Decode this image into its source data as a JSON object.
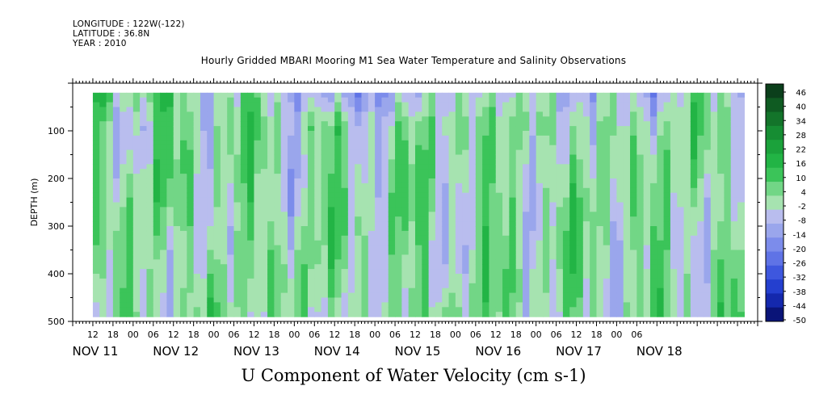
{
  "header": {
    "longitude": "LONGITUDE : 122W(-122)",
    "latitude": "LATITUDE : 36.8N",
    "year": "YEAR : 2010"
  },
  "chart_data": {
    "type": "heatmap",
    "title": "Hourly Gridded MBARI Mooring M1 Sea Water Temperature and Salinity Observations",
    "subtitle": "U Component of Water Velocity (cm s-1)",
    "xlabel": "",
    "ylabel": "DEPTH (m)",
    "x_hour_ticks": [
      "12",
      "18",
      "00",
      "06",
      "12",
      "18",
      "00",
      "06",
      "12",
      "18",
      "00",
      "06",
      "12",
      "18",
      "00",
      "06",
      "12",
      "18",
      "00",
      "06",
      "12",
      "18",
      "00",
      "06",
      "12",
      "18",
      "00",
      "06"
    ],
    "x_day_labels": [
      "NOV 11",
      "NOV 12",
      "NOV 13",
      "NOV 14",
      "NOV 15",
      "NOV 16",
      "NOV 17",
      "NOV 18"
    ],
    "x_range_hours": [
      0,
      204
    ],
    "data_x_range_hours": [
      6,
      200
    ],
    "y_ticks": [
      100,
      200,
      300,
      400,
      500
    ],
    "ylim": [
      500,
      0
    ],
    "data_depth_range": [
      20,
      490
    ],
    "colorbar": {
      "levels": [
        46,
        40,
        34,
        28,
        22,
        16,
        10,
        4,
        -2,
        -8,
        -14,
        -20,
        -26,
        -32,
        -38,
        -44,
        -50
      ],
      "colors": [
        "#0b3f1b",
        "#0f5b22",
        "#13742a",
        "#168d33",
        "#1ba23b",
        "#22b445",
        "#3bc459",
        "#72d686",
        "#a6e3b0",
        "#b9bdee",
        "#9aa6ec",
        "#7c8ceb",
        "#5f73e6",
        "#3e57de",
        "#243fcf",
        "#1428ad",
        "#0a1478"
      ]
    },
    "notes": "U velocity roughly within -20 to +16 cm/s; strongest negative near surface Nov 13-15; alternating green (positive) and blue (negative) vertical bands through time"
  }
}
